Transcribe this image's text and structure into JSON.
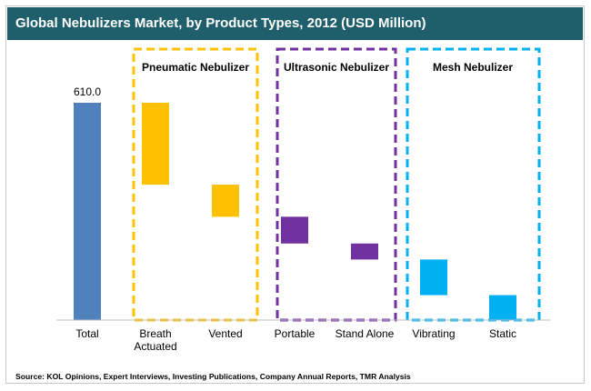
{
  "title": "Global Nebulizers Market, by Product Types, 2012 (USD Million)",
  "source": "Source: KOL Opinions, Expert Interviews, Investing Publications, Company Annual Reports, TMR Analysis",
  "colors": {
    "title_bar": "#1f5f6b",
    "total": "#4f81bd",
    "pneumatic": "#ffc000",
    "ultrasonic": "#7030a0",
    "mesh": "#00b0f0"
  },
  "chart_data": {
    "type": "bar",
    "subtype": "waterfall",
    "title": "Global Nebulizers Market, by Product Types, 2012 (USD Million)",
    "xlabel": "",
    "ylabel": "",
    "ylim": [
      0,
      620
    ],
    "categories": [
      "Total",
      "Breath\nActuated",
      "Vented",
      "Portable",
      "Stand Alone",
      "Vibrating",
      "Static"
    ],
    "bars": [
      {
        "category": "Total",
        "group": "total",
        "start": 0,
        "end": 610.0,
        "value": 610.0,
        "label": "610.0"
      },
      {
        "category": "Breath\nActuated",
        "group": "pneumatic",
        "start": 380,
        "end": 610,
        "value": 230
      },
      {
        "category": "Vented",
        "group": "pneumatic",
        "start": 290,
        "end": 380,
        "value": 90
      },
      {
        "category": "Portable",
        "group": "ultrasonic",
        "start": 215,
        "end": 290,
        "value": 75
      },
      {
        "category": "Stand Alone",
        "group": "ultrasonic",
        "start": 170,
        "end": 215,
        "value": 45
      },
      {
        "category": "Vibrating",
        "group": "mesh",
        "start": 70,
        "end": 170,
        "value": 100
      },
      {
        "category": "Static",
        "group": "mesh",
        "start": 0,
        "end": 70,
        "value": 70
      }
    ],
    "groups": [
      {
        "key": "pneumatic",
        "label": "Pneumatic Nebulizer"
      },
      {
        "key": "ultrasonic",
        "label": "Ultrasonic Nebulizer"
      },
      {
        "key": "mesh",
        "label": "Mesh Nebulizer"
      }
    ],
    "grid": false,
    "legend": "none"
  }
}
